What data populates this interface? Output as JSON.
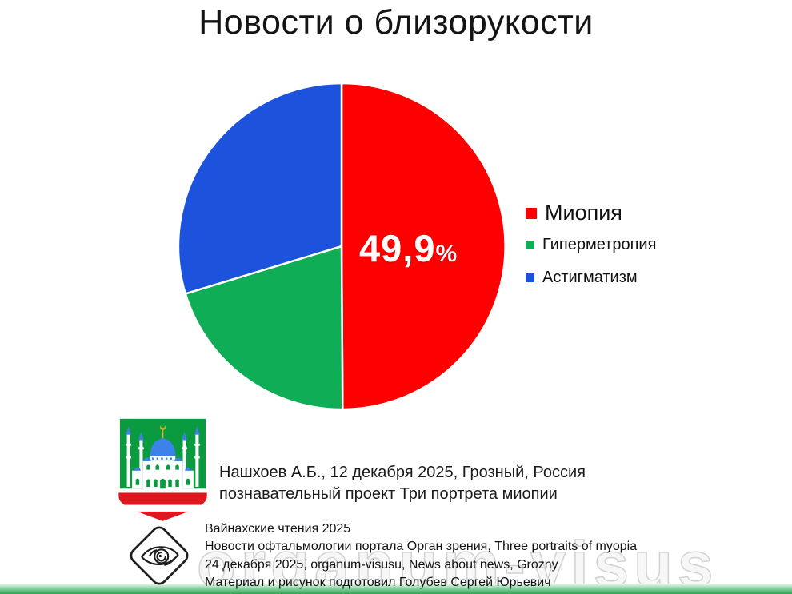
{
  "slide": {
    "title": "Новости о близорукости"
  },
  "chart_data": {
    "type": "pie",
    "title": "Новости о близорукости",
    "categories": [
      "Миопия",
      "Гиперметропия",
      "Астигматизм"
    ],
    "values": [
      49.9,
      20.4,
      29.7
    ],
    "colors": [
      "#FE0000",
      "#0FAD55",
      "#1C52DC"
    ],
    "start_angle_deg": 0,
    "direction": "clockwise",
    "legend_position": "right",
    "data_labels": [
      {
        "category": "Миопия",
        "text": "49,9",
        "unit": "%",
        "color": "#FFFFFF"
      }
    ]
  },
  "footer": {
    "affiliation_lines": [
      "Нашхоев А.Б., 12 декабря 2025, Грозный, Россия",
      "познавательный проект Три портрета миопии"
    ],
    "credits_lines": [
      "Вайнахские чтения 2025",
      "Новости офтальмологии портала Орган зрения, Three portraits of myopia",
      "24 декабря 2025, organum-visusu, News about news, Grozny",
      "Материал и рисунок подготовил Голубев Сергей Юрьевич"
    ],
    "watermark": "organum-visus"
  },
  "icons": {
    "grozny_emblem": "grozny-coat-of-arms-logo",
    "eye_logo": "organ-zreniya-eye-logo"
  },
  "colors": {
    "myopia_red": "#FE0000",
    "hypermetropia_green": "#0FAD55",
    "astigmatism_blue": "#1C52DC",
    "emblem_field_green": "#0A9B41",
    "emblem_stripe_red": "#DF1820",
    "emblem_dome_blue": "#3C82E8",
    "emblem_gold": "#EDB021",
    "bottom_bar_green": "#2EA552"
  }
}
